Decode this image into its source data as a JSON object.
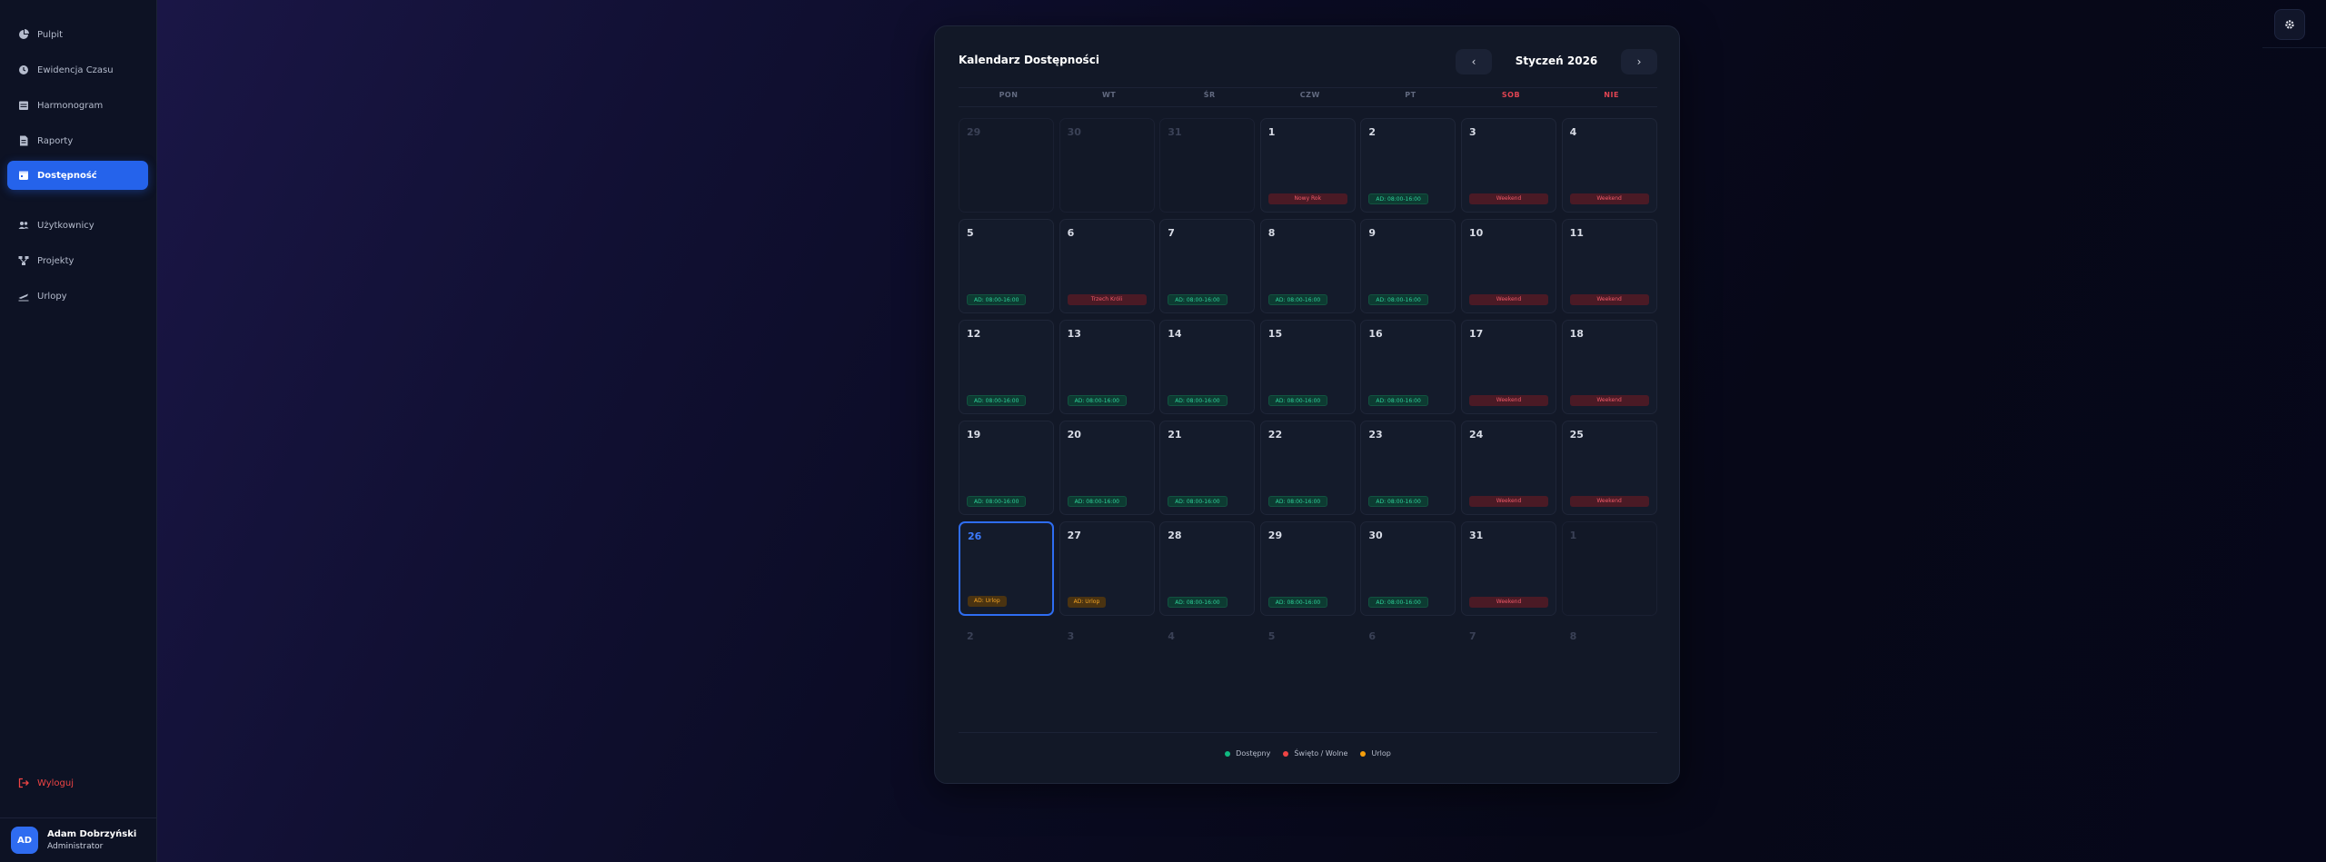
{
  "sidebar": {
    "items": [
      {
        "label": "Pulpit",
        "icon": "chart-pie-icon"
      },
      {
        "label": "Ewidencja Czasu",
        "icon": "clock-icon"
      },
      {
        "label": "Harmonogram",
        "icon": "schedule-icon"
      },
      {
        "label": "Raporty",
        "icon": "report-icon"
      },
      {
        "label": "Dostępność",
        "icon": "calendar-icon",
        "active": true
      },
      {
        "label": "Użytkownicy",
        "icon": "users-icon"
      },
      {
        "label": "Projekty",
        "icon": "projects-icon"
      },
      {
        "label": "Urlopy",
        "icon": "plane-icon"
      }
    ],
    "logout": "Wyloguj",
    "user": {
      "initials": "AD",
      "name": "Adam Dobrzyński",
      "role": "Administrator"
    }
  },
  "calendar": {
    "title": "Kalendarz Dostępności",
    "month": "Styczeń 2026",
    "weekdays": [
      "PON",
      "WT",
      "ŚR",
      "CZW",
      "PT",
      "SOB",
      "NIE"
    ],
    "weeks": [
      [
        {
          "day": "29",
          "other": true
        },
        {
          "day": "30",
          "other": true
        },
        {
          "day": "31",
          "other": true
        },
        {
          "day": "1",
          "tag": "Nowy Rok",
          "kind": "red"
        },
        {
          "day": "2",
          "tag": "AD: 08:00-16:00",
          "kind": "green"
        },
        {
          "day": "3",
          "tag": "Weekend",
          "kind": "red"
        },
        {
          "day": "4",
          "tag": "Weekend",
          "kind": "red"
        }
      ],
      [
        {
          "day": "5",
          "tag": "AD: 08:00-16:00",
          "kind": "green"
        },
        {
          "day": "6",
          "tag": "Trzech Króli",
          "kind": "red"
        },
        {
          "day": "7",
          "tag": "AD: 08:00-16:00",
          "kind": "green"
        },
        {
          "day": "8",
          "tag": "AD: 08:00-16:00",
          "kind": "green"
        },
        {
          "day": "9",
          "tag": "AD: 08:00-16:00",
          "kind": "green"
        },
        {
          "day": "10",
          "tag": "Weekend",
          "kind": "red"
        },
        {
          "day": "11",
          "tag": "Weekend",
          "kind": "red"
        }
      ],
      [
        {
          "day": "12",
          "tag": "AD: 08:00-16:00",
          "kind": "green"
        },
        {
          "day": "13",
          "tag": "AD: 08:00-16:00",
          "kind": "green"
        },
        {
          "day": "14",
          "tag": "AD: 08:00-16:00",
          "kind": "green"
        },
        {
          "day": "15",
          "tag": "AD: 08:00-16:00",
          "kind": "green"
        },
        {
          "day": "16",
          "tag": "AD: 08:00-16:00",
          "kind": "green"
        },
        {
          "day": "17",
          "tag": "Weekend",
          "kind": "red"
        },
        {
          "day": "18",
          "tag": "Weekend",
          "kind": "red"
        }
      ],
      [
        {
          "day": "19",
          "tag": "AD: 08:00-16:00",
          "kind": "green"
        },
        {
          "day": "20",
          "tag": "AD: 08:00-16:00",
          "kind": "green"
        },
        {
          "day": "21",
          "tag": "AD: 08:00-16:00",
          "kind": "green"
        },
        {
          "day": "22",
          "tag": "AD: 08:00-16:00",
          "kind": "green"
        },
        {
          "day": "23",
          "tag": "AD: 08:00-16:00",
          "kind": "green"
        },
        {
          "day": "24",
          "tag": "Weekend",
          "kind": "red"
        },
        {
          "day": "25",
          "tag": "Weekend",
          "kind": "red"
        }
      ],
      [
        {
          "day": "26",
          "tag": "AD: Urlop",
          "kind": "orange",
          "today": true
        },
        {
          "day": "27",
          "tag": "AD: Urlop",
          "kind": "orange"
        },
        {
          "day": "28",
          "tag": "AD: 08:00-16:00",
          "kind": "green"
        },
        {
          "day": "29",
          "tag": "AD: 08:00-16:00",
          "kind": "green"
        },
        {
          "day": "30",
          "tag": "AD: 08:00-16:00",
          "kind": "green"
        },
        {
          "day": "31",
          "tag": "Weekend",
          "kind": "red"
        },
        {
          "day": "1",
          "other": true
        }
      ],
      [
        {
          "day": "2",
          "other": true,
          "blank": true
        },
        {
          "day": "3",
          "other": true,
          "blank": true
        },
        {
          "day": "4",
          "other": true,
          "blank": true
        },
        {
          "day": "5",
          "other": true,
          "blank": true
        },
        {
          "day": "6",
          "other": true,
          "blank": true
        },
        {
          "day": "7",
          "other": true,
          "blank": true
        },
        {
          "day": "8",
          "other": true,
          "blank": true
        }
      ]
    ],
    "legend": [
      {
        "label": "Dostępny",
        "color": "#10b981"
      },
      {
        "label": "Święto / Wolne",
        "color": "#ef4444"
      },
      {
        "label": "Urlop",
        "color": "#f59e0b"
      }
    ]
  }
}
